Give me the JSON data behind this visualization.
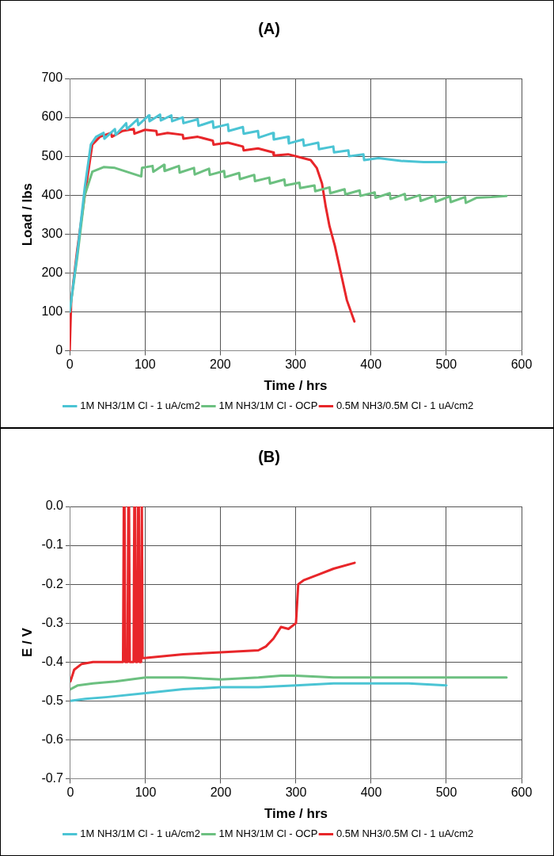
{
  "chart_data": [
    {
      "type": "line",
      "title": "(A)",
      "xlabel": "Time / hrs",
      "ylabel": "Load / lbs",
      "xlim": [
        0,
        600
      ],
      "xticks": [
        0,
        100,
        200,
        300,
        400,
        500,
        600
      ],
      "ylim": [
        0,
        700
      ],
      "yticks": [
        0,
        100,
        200,
        300,
        400,
        500,
        600,
        700
      ],
      "grid": true,
      "legend": "bottom",
      "marker": "none",
      "series": [
        {
          "name": "1M NH3/1M Cl - 1 uA/cm2",
          "color": "#4bc4d4",
          "x": [
            0,
            10,
            20,
            28,
            35,
            45,
            46,
            60,
            61,
            75,
            76,
            90,
            91,
            105,
            106,
            120,
            121,
            135,
            136,
            150,
            151,
            170,
            171,
            190,
            191,
            210,
            211,
            230,
            231,
            250,
            251,
            270,
            271,
            290,
            291,
            310,
            311,
            330,
            331,
            350,
            351,
            370,
            371,
            390,
            391,
            410,
            440,
            470,
            500
          ],
          "values": [
            100,
            250,
            420,
            530,
            550,
            560,
            545,
            570,
            555,
            585,
            570,
            595,
            580,
            605,
            590,
            607,
            592,
            605,
            590,
            600,
            585,
            595,
            578,
            590,
            573,
            582,
            565,
            575,
            558,
            565,
            548,
            560,
            543,
            550,
            533,
            543,
            527,
            535,
            518,
            525,
            510,
            515,
            500,
            505,
            490,
            495,
            488,
            485,
            485
          ]
        },
        {
          "name": "1M NH3/1M Cl - OCP",
          "color": "#6cc080",
          "x": [
            0,
            10,
            20,
            30,
            45,
            60,
            95,
            96,
            110,
            111,
            125,
            126,
            145,
            146,
            165,
            166,
            185,
            186,
            205,
            206,
            225,
            226,
            245,
            246,
            265,
            266,
            285,
            286,
            305,
            306,
            325,
            326,
            345,
            346,
            365,
            366,
            385,
            386,
            405,
            406,
            425,
            426,
            445,
            446,
            465,
            466,
            485,
            486,
            505,
            506,
            525,
            526,
            540,
            560,
            580
          ],
          "values": [
            100,
            240,
            400,
            460,
            472,
            470,
            448,
            470,
            475,
            460,
            478,
            462,
            475,
            458,
            470,
            453,
            468,
            452,
            462,
            446,
            457,
            441,
            452,
            436,
            445,
            430,
            440,
            425,
            432,
            418,
            425,
            410,
            420,
            405,
            415,
            402,
            412,
            398,
            407,
            393,
            405,
            390,
            403,
            388,
            400,
            385,
            398,
            383,
            397,
            382,
            395,
            380,
            393,
            395,
            398
          ]
        },
        {
          "name": "0.5M NH3/0.5M Cl - 1 uA/cm2",
          "color": "#e8262a",
          "x": [
            0,
            2,
            10,
            20,
            30,
            40,
            55,
            56,
            70,
            85,
            86,
            100,
            115,
            116,
            130,
            150,
            151,
            170,
            190,
            191,
            210,
            230,
            231,
            250,
            270,
            271,
            290,
            310,
            320,
            328,
            335,
            340,
            345,
            352,
            360,
            368,
            378
          ],
          "values": [
            0,
            130,
            260,
            400,
            530,
            550,
            560,
            550,
            565,
            570,
            558,
            568,
            565,
            555,
            560,
            555,
            545,
            550,
            540,
            530,
            535,
            525,
            515,
            520,
            510,
            502,
            505,
            495,
            490,
            470,
            430,
            370,
            320,
            270,
            200,
            130,
            75
          ]
        }
      ]
    },
    {
      "type": "line",
      "title": "(B)",
      "xlabel": "Time / hrs",
      "ylabel": "E / V",
      "xlim": [
        0,
        600
      ],
      "xticks": [
        0,
        100,
        200,
        300,
        400,
        500,
        600
      ],
      "ylim": [
        -0.7,
        0
      ],
      "yticks": [
        {
          "value": 0,
          "label": "0.0"
        },
        -0.1,
        -0.2,
        -0.3,
        -0.4,
        -0.5,
        -0.6,
        -0.7
      ],
      "grid": true,
      "legend": "bottom",
      "marker": "none",
      "series": [
        {
          "name": "1M NH3/1M Cl - 1 uA/cm2",
          "color": "#4bc4d4",
          "x": [
            0,
            20,
            50,
            100,
            150,
            200,
            250,
            300,
            350,
            400,
            450,
            500
          ],
          "values": [
            -0.5,
            -0.495,
            -0.49,
            -0.48,
            -0.47,
            -0.465,
            -0.465,
            -0.46,
            -0.455,
            -0.455,
            -0.455,
            -0.46
          ]
        },
        {
          "name": "1M NH3/1M Cl - OCP",
          "color": "#6cc080",
          "x": [
            0,
            10,
            30,
            60,
            100,
            150,
            200,
            250,
            280,
            300,
            350,
            400,
            500,
            580
          ],
          "values": [
            -0.47,
            -0.46,
            -0.455,
            -0.45,
            -0.44,
            -0.44,
            -0.445,
            -0.44,
            -0.435,
            -0.435,
            -0.44,
            -0.44,
            -0.44,
            -0.44
          ]
        },
        {
          "name": "0.5M NH3/0.5M Cl - 1 uA/cm2",
          "color": "#e8262a",
          "x": [
            0,
            5,
            15,
            30,
            70,
            71,
            72,
            73,
            76,
            77,
            78,
            79,
            84,
            85,
            86,
            87,
            89,
            90,
            91,
            92,
            94,
            95,
            96,
            98,
            150,
            200,
            250,
            260,
            270,
            280,
            290,
            300,
            303,
            310,
            330,
            350,
            378
          ],
          "values": [
            -0.45,
            -0.42,
            -0.405,
            -0.4,
            -0.4,
            0,
            0,
            -0.4,
            -0.4,
            0,
            0,
            -0.4,
            -0.4,
            0,
            0,
            -0.4,
            -0.4,
            0,
            0,
            -0.4,
            -0.4,
            0,
            -0.39,
            -0.39,
            -0.38,
            -0.375,
            -0.37,
            -0.36,
            -0.34,
            -0.31,
            -0.315,
            -0.3,
            -0.2,
            -0.19,
            -0.175,
            -0.16,
            -0.145
          ]
        }
      ]
    }
  ]
}
